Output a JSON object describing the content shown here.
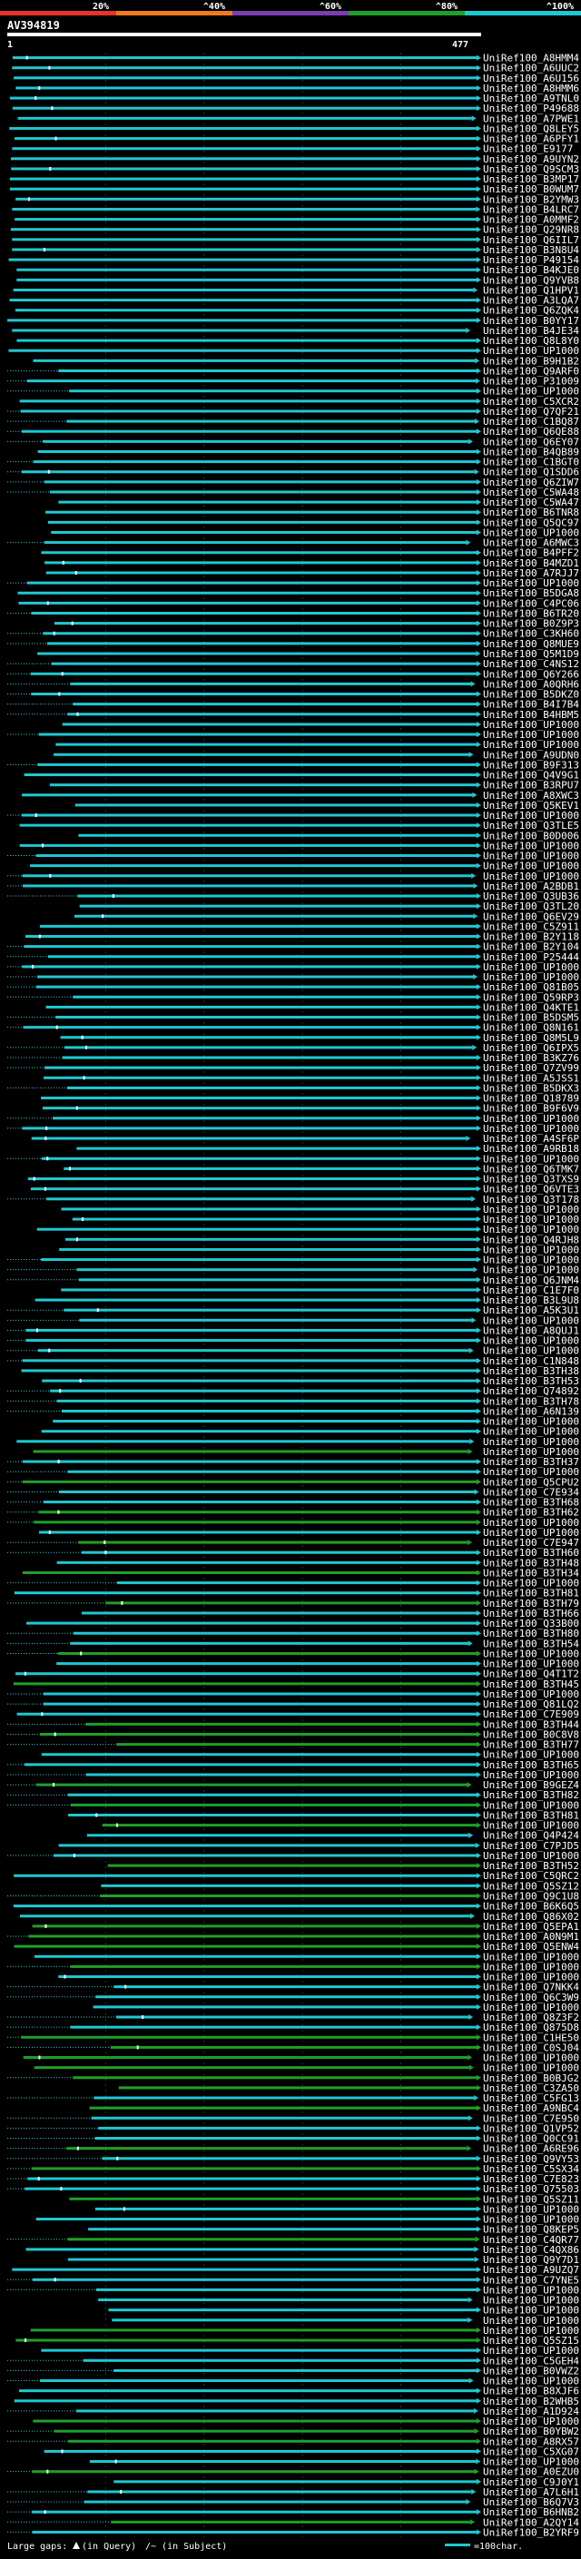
{
  "query_id": "AV394819",
  "start_label": "1",
  "end_label": "477",
  "color_scale": [
    {
      "label": "20%",
      "color": "#e8322c"
    },
    {
      "label": "^40%",
      "color": "#f0781e"
    },
    {
      "label": "^60%",
      "color": "#7d3cb4"
    },
    {
      "label": "^80%",
      "color": "#1ea028"
    },
    {
      "label": "^100%",
      "color": "#1ec8d2"
    }
  ],
  "footer": {
    "large_gaps_label": "Large gaps:",
    "in_query": "(in Query)",
    "in_subject": "/~ (in Subject)",
    "scale_label": "=100char."
  },
  "hits": [
    "UniRef100_A8HMM4",
    "UniRef100_A6UUC2",
    "UniRef100_A6U156",
    "UniRef100_A8HMM6",
    "UniRef100_A9TNL0",
    "UniRef100_P49688",
    "UniRef100_A7PWE1",
    "UniRef100_Q8LEY5",
    "UniRef100_A6PFY1",
    "UniRef100_E9177",
    "UniRef100_A9UYN2",
    "UniRef100_Q9SCM3",
    "UniRef100_B3MP17",
    "UniRef100_B0WUM7",
    "UniRef100_B2YMW3",
    "UniRef100_B4LRC7",
    "UniRef100_A0MMF2",
    "UniRef100_Q29NR8",
    "UniRef100_Q6IIL7",
    "UniRef100_B3N8U4",
    "UniRef100_P49154",
    "UniRef100_B4KJE0",
    "UniRef100_Q9YVB8",
    "UniRef100_Q1HPV1",
    "UniRef100_A3LQA7",
    "UniRef100_Q6ZQK4",
    "UniRef100_B0YY17",
    "UniRef100_B4JE34",
    "UniRef100_Q8L8Y0",
    "UniRef100_UP1000..",
    "UniRef100_B9H1B2",
    "UniRef100_Q9ARF0",
    "UniRef100_P31009",
    "UniRef100_UP1000..",
    "UniRef100_C5XCR2",
    "UniRef100_Q7QF21",
    "UniRef100_C1BQ87",
    "UniRef100_Q6QE88",
    "UniRef100_Q6EY07",
    "UniRef100_B4QB89",
    "UniRef100_C1BGT0",
    "UniRef100_Q1SDD6",
    "UniRef100_Q6ZIW7",
    "UniRef100_C5WA48",
    "UniRef100_C5WA47",
    "UniRef100_B6TNR8",
    "UniRef100_Q5QC97",
    "UniRef100_UP1000..",
    "UniRef100_A6MWC3",
    "UniRef100_B4PFF2",
    "UniRef100_B4MZD1",
    "UniRef100_A7RJJ7",
    "UniRef100_UP1000..",
    "UniRef100_B5DGA8",
    "UniRef100_C4PC06",
    "UniRef100_B6TR20",
    "UniRef100_B0Z9P3",
    "UniRef100_C3KH60",
    "UniRef100_Q8MUE9",
    "UniRef100_Q5M1D9",
    "UniRef100_C4NS12",
    "UniRef100_Q6Y266",
    "UniRef100_A0QRH6",
    "UniRef100_B5DKZ0",
    "UniRef100_B4I7B4",
    "UniRef100_B4HBM5",
    "UniRef100_UP1000..",
    "UniRef100_UP1000..",
    "UniRef100_UP1000..",
    "UniRef100_A9UDN0",
    "UniRef100_B9F313",
    "UniRef100_Q4V9G1",
    "UniRef100_B3RPU7",
    "UniRef100_A8XWC3",
    "UniRef100_Q5KEV1",
    "UniRef100_UP1000..",
    "UniRef100_Q3TLE5",
    "UniRef100_B0D006",
    "UniRef100_UP1000..",
    "UniRef100_UP1000..",
    "UniRef100_UP1000..",
    "UniRef100_UP1000..",
    "UniRef100_A2BDB1",
    "UniRef100_Q3UB36",
    "UniRef100_Q3TL20",
    "UniRef100_Q6EV29",
    "UniRef100_C5Z911",
    "UniRef100_B2Y118",
    "UniRef100_B2Y104",
    "UniRef100_P25444",
    "UniRef100_UP1000..",
    "UniRef100_UP1000..",
    "UniRef100_Q81B05",
    "UniRef100_Q59RP3",
    "UniRef100_Q4KTE1",
    "UniRef100_B5DSM5",
    "UniRef100_Q8N161",
    "UniRef100_Q8M5L9",
    "UniRef100_Q6IPX5",
    "UniRef100_B3KZ76",
    "UniRef100_Q7ZV99",
    "UniRef100_A5JSS1",
    "UniRef100_B5DKX3",
    "UniRef100_Q18789",
    "UniRef100_B9F6V9",
    "UniRef100_UP1000..",
    "UniRef100_UP1000..",
    "UniRef100_A4SF6P",
    "UniRef100_A9RB18",
    "UniRef100_UP1000..",
    "UniRef100_Q6TMK7",
    "UniRef100_Q3TXS9",
    "UniRef100_Q6VTE3",
    "UniRef100_Q3T178",
    "UniRef100_UP1000..",
    "UniRef100_UP1000..",
    "UniRef100_UP1000..",
    "UniRef100_Q4RJH8",
    "UniRef100_UP1000..",
    "UniRef100_UP1000..",
    "UniRef100_UP1000..",
    "UniRef100_Q6JNM4",
    "UniRef100_C1E7F0",
    "UniRef100_B3L9U8",
    "UniRef100_A5K3U1",
    "UniRef100_UP1000..",
    "UniRef100_A8QUJ1",
    "UniRef100_UP1000..",
    "UniRef100_UP1000..",
    "UniRef100_C1N848",
    "UniRef100_B3TH38",
    "UniRef100_B3TH53",
    "UniRef100_Q74892",
    "UniRef100_B3TH78",
    "UniRef100_A6N139",
    "UniRef100_UP1000..",
    "UniRef100_UP1000..",
    "UniRef100_UP1000..",
    "UniRef100_UP1000..",
    "UniRef100_B3TH37",
    "UniRef100_UP1000..",
    "UniRef100_Q5CPU2",
    "UniRef100_C7E934",
    "UniRef100_B3TH68",
    "UniRef100_B3TH62",
    "UniRef100_UP1000..",
    "UniRef100_UP1000..",
    "UniRef100_C7E947",
    "UniRef100_B3TH60",
    "UniRef100_B3TH48",
    "UniRef100_B3TH34",
    "UniRef100_UP1000..",
    "UniRef100_B3TH81",
    "UniRef100_B3TH79",
    "UniRef100_B3TH66",
    "UniRef100_Q33B00",
    "UniRef100_B3TH80",
    "UniRef100_B3TH54",
    "UniRef100_UP1000..",
    "UniRef100_UP1000..",
    "UniRef100_Q4T1T2",
    "UniRef100_B3TH45",
    "UniRef100_UP1000..",
    "UniRef100_Q81LQ2",
    "UniRef100_C7E909",
    "UniRef100_B3TH44",
    "UniRef100_B0C8V8",
    "UniRef100_B3TH77",
    "UniRef100_UP1000..",
    "UniRef100_B3TH65",
    "UniRef100_UP1000..",
    "UniRef100_B9GEZ4",
    "UniRef100_B3TH82",
    "UniRef100_UP1000..",
    "UniRef100_B3TH81",
    "UniRef100_UP1000..",
    "UniRef100_Q4P424",
    "UniRef100_C7PJD5",
    "UniRef100_UP1000..",
    "UniRef100_B3TH52",
    "UniRef100_C5QRC2",
    "UniRef100_Q5SZ12",
    "UniRef100_Q9C1U8",
    "UniRef100_B6K6Q5",
    "UniRef100_Q86X02",
    "UniRef100_Q5EPA1",
    "UniRef100_A0N9M1",
    "UniRef100_Q5ENW4",
    "UniRef100_UP1000..",
    "UniRef100_UP1000..",
    "UniRef100_UP1000..",
    "UniRef100_Q7NKK4",
    "UniRef100_Q6C3W9",
    "UniRef100_UP1000..",
    "UniRef100_Q8Z3F2",
    "UniRef100_Q875D8",
    "UniRef100_C1HE50",
    "UniRef100_C0SJ04",
    "UniRef100_UP1000..",
    "UniRef100_UP1000..",
    "UniRef100_B0BJG2",
    "UniRef100_C3ZA50",
    "UniRef100_C5FG13",
    "UniRef100_A9NBC4",
    "UniRef100_C7E950",
    "UniRef100_Q1VP52",
    "UniRef100_Q0CC91",
    "UniRef100_A6RE96",
    "UniRef100_Q9VY53",
    "UniRef100_C5SX34",
    "UniRef100_C7E823",
    "UniRef100_Q75503",
    "UniRef100_Q5SZ11",
    "UniRef100_UP1000..",
    "UniRef100_UP1000..",
    "UniRef100_Q8KEP5",
    "UniRef100_C4QR77",
    "UniRef100_C4QX86",
    "UniRef100_Q9Y7D1",
    "UniRef100_A9UZQ7",
    "UniRef100_C7YNE5",
    "UniRef100_UP1000..",
    "UniRef100_UP1000..",
    "UniRef100_UP1000..",
    "UniRef100_UP1000..",
    "UniRef100_UP1000..",
    "UniRef100_Q5SZ15",
    "UniRef100_UP1000..",
    "UniRef100_C5GEH4",
    "UniRef100_B0VWZ2",
    "UniRef100_UP1000..",
    "UniRef100_B8XJF6",
    "UniRef100_B2WHB5",
    "UniRef100_A1D924",
    "UniRef100_UP1000..",
    "UniRef100_B0YBW2",
    "UniRef100_A8RX57",
    "UniRef100_C5XG07",
    "UniRef100_UP1000..",
    "UniRef100_A0EZU0",
    "UniRef100_C9J0Y1",
    "UniRef100_A7L6H1",
    "UniRef100_B6Q7V3",
    "UniRef100_B6HNB2",
    "UniRef100_A2QY14",
    "UniRef100_B2YRF9"
  ]
}
